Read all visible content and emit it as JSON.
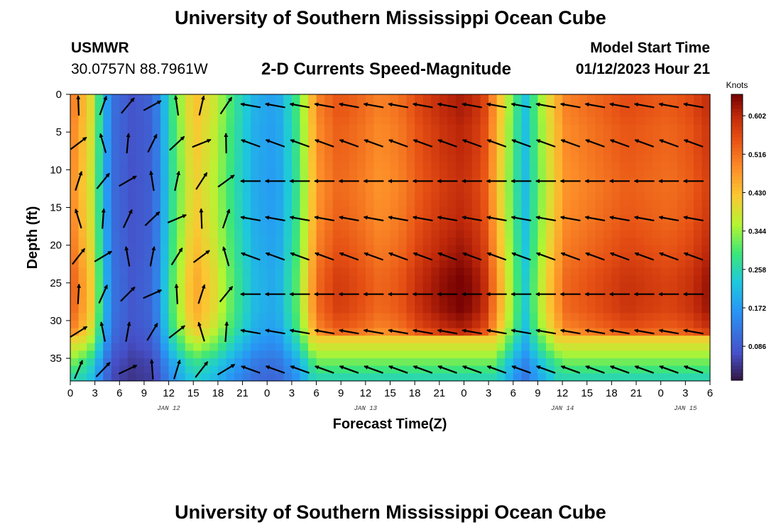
{
  "header": {
    "title": "University of Southern Mississippi Ocean Cube",
    "station": "USMWR",
    "coordinates": "30.0757N  88.7961W",
    "subtitle": "2-D Currents Speed-Magnitude",
    "model_start_label": "Model Start Time",
    "model_start_value": "01/12/2023 Hour 21"
  },
  "footer": {
    "title": "University of Southern Mississippi Ocean Cube"
  },
  "chart_data": {
    "type": "heatmap",
    "title": "2-D Currents Speed-Magnitude",
    "xlabel": "Forecast Time(Z)",
    "ylabel": "Depth (ft)",
    "x_ticks": [
      "0",
      "3",
      "6",
      "9",
      "12",
      "15",
      "18",
      "21",
      "0",
      "3",
      "6",
      "9",
      "12",
      "15",
      "18",
      "21",
      "0",
      "3",
      "6",
      "9",
      "12",
      "15",
      "18",
      "21",
      "0",
      "3",
      "6"
    ],
    "x_range_hours": [
      0,
      78
    ],
    "y_ticks": [
      "0",
      "5",
      "10",
      "15",
      "20",
      "25",
      "30",
      "35"
    ],
    "y_range_ft": [
      0,
      38
    ],
    "date_labels": [
      {
        "label": "JAN 12",
        "hour": 12
      },
      {
        "label": "JAN 13",
        "hour": 36
      },
      {
        "label": "JAN 14",
        "hour": 60
      },
      {
        "label": "JAN 15",
        "hour": 75
      }
    ],
    "colorbar": {
      "unit": "Knots",
      "ticks": [
        "0.602",
        "0.516",
        "0.430",
        "0.344",
        "0.258",
        "0.172",
        "0.086"
      ],
      "range": [
        0.01,
        0.65
      ]
    },
    "speed_profile_knots": [
      0.52,
      0.4,
      0.12,
      0.08,
      0.1,
      0.3,
      0.44,
      0.38,
      0.28,
      0.2,
      0.18,
      0.3,
      0.5,
      0.55,
      0.53,
      0.5,
      0.52,
      0.57,
      0.6,
      0.62,
      0.58,
      0.4,
      0.22,
      0.38,
      0.5,
      0.52,
      0.54,
      0.56,
      0.55,
      0.54,
      0.56,
      0.6
    ],
    "speed_scale_by_depth": [
      1.0,
      1.0,
      0.98,
      0.98,
      0.97,
      0.96,
      0.97,
      0.98,
      1.0,
      1.02,
      1.05,
      1.06,
      1.05,
      1.0,
      0.85,
      0.65,
      0.55
    ]
  }
}
